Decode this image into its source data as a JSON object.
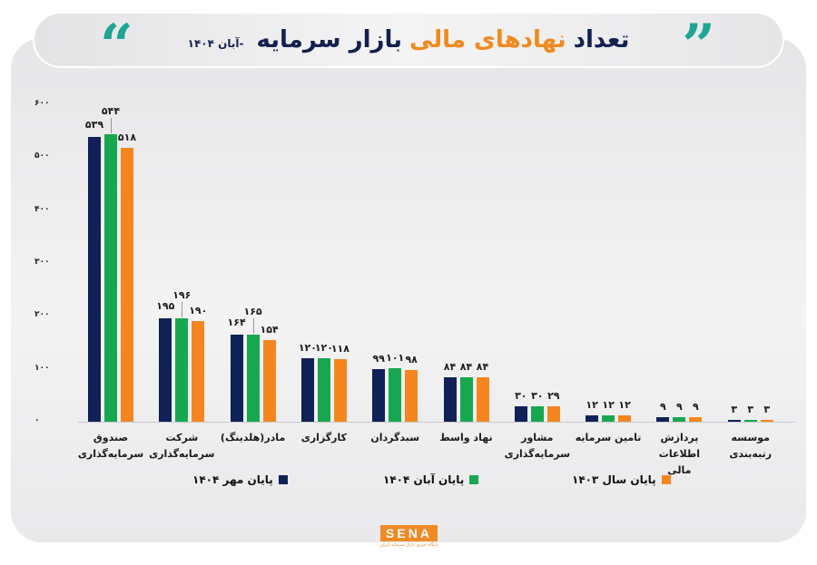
{
  "header": {
    "title_part1": "تعداد",
    "title_part2": "نهادهای مالی",
    "title_part3": "بازار سرمایه",
    "subtitle": "-آبان ۱۴۰۴",
    "quote_open_icon": "quote-open",
    "quote_close_icon": "quote-close"
  },
  "colors": {
    "series1": "#0f2157",
    "series2": "#17a84f",
    "series3": "#f5861f",
    "accent_teal": "#1fa593",
    "title_dark": "#13204f",
    "title_orange": "#f18a1c"
  },
  "legend": [
    {
      "label": "پایان مهر ۱۴۰۴",
      "color": "#0f2157"
    },
    {
      "label": "پایان آبان ۱۴۰۴",
      "color": "#17a84f"
    },
    {
      "label": "پایان سال ۱۴۰۳",
      "color": "#f5861f"
    }
  ],
  "yaxis_ticks": [
    "۶۰۰",
    "۵۰۰",
    "۴۰۰",
    "۳۰۰",
    "۲۰۰",
    "۱۰۰",
    "۰"
  ],
  "categories_display": [
    [
      "صندوق",
      "سرمایه‌گذاری"
    ],
    [
      "شرکت",
      "سرمایه‌گذاری"
    ],
    [
      "مادر(هلدینگ)"
    ],
    [
      "کارگزاری"
    ],
    [
      "سبدگردان"
    ],
    [
      "نهاد واسط"
    ],
    [
      "مشاور",
      "سرمایه‌گذاری"
    ],
    [
      "تامین سرمایه"
    ],
    [
      "پردازش اطلاعات",
      "مالی"
    ],
    [
      "موسسه رتبه‌بندی"
    ]
  ],
  "value_labels": [
    [
      "۵۳۹",
      "۵۴۴",
      "۵۱۸"
    ],
    [
      "۱۹۵",
      "۱۹۶",
      "۱۹۰"
    ],
    [
      "۱۶۴",
      "۱۶۵",
      "۱۵۴"
    ],
    [
      "۱۲۰",
      "۱۲۰",
      "۱۱۸"
    ],
    [
      "۹۹",
      "۱۰۱",
      "۹۸"
    ],
    [
      "۸۴",
      "۸۴",
      "۸۴"
    ],
    [
      "۳۰",
      "۳۰",
      "۲۹"
    ],
    [
      "۱۲",
      "۱۲",
      "۱۲"
    ],
    [
      "۹",
      "۹",
      "۹"
    ],
    [
      "۳",
      "۳",
      "۳"
    ]
  ],
  "footer": {
    "logo_text": "SENA",
    "logo_subtitle": "پایگاه خبری بازار سرمایه ایران"
  },
  "chart_data": {
    "type": "bar",
    "title": "تعداد نهادهای مالی بازار سرمایه - آبان ۱۴۰۴",
    "xlabel": "",
    "ylabel": "",
    "ylim": [
      0,
      600
    ],
    "yticks": [
      0,
      100,
      200,
      300,
      400,
      500,
      600
    ],
    "grid": false,
    "legend_position": "bottom",
    "categories": [
      "صندوق سرمایه‌گذاری",
      "شرکت سرمایه‌گذاری",
      "مادر(هلدینگ)",
      "کارگزاری",
      "سبدگردان",
      "نهاد واسط",
      "مشاور سرمایه‌گذاری",
      "تامین سرمایه",
      "پردازش اطلاعات مالی",
      "موسسه رتبه‌بندی"
    ],
    "series": [
      {
        "name": "پایان مهر ۱۴۰۴",
        "color": "#0f2157",
        "values": [
          539,
          195,
          164,
          120,
          99,
          84,
          30,
          12,
          9,
          3
        ]
      },
      {
        "name": "پایان آبان ۱۴۰۴",
        "color": "#17a84f",
        "values": [
          544,
          196,
          165,
          120,
          101,
          84,
          30,
          12,
          9,
          3
        ]
      },
      {
        "name": "پایان سال ۱۴۰۳",
        "color": "#f5861f",
        "values": [
          518,
          190,
          154,
          118,
          98,
          84,
          29,
          12,
          9,
          3
        ]
      }
    ]
  }
}
